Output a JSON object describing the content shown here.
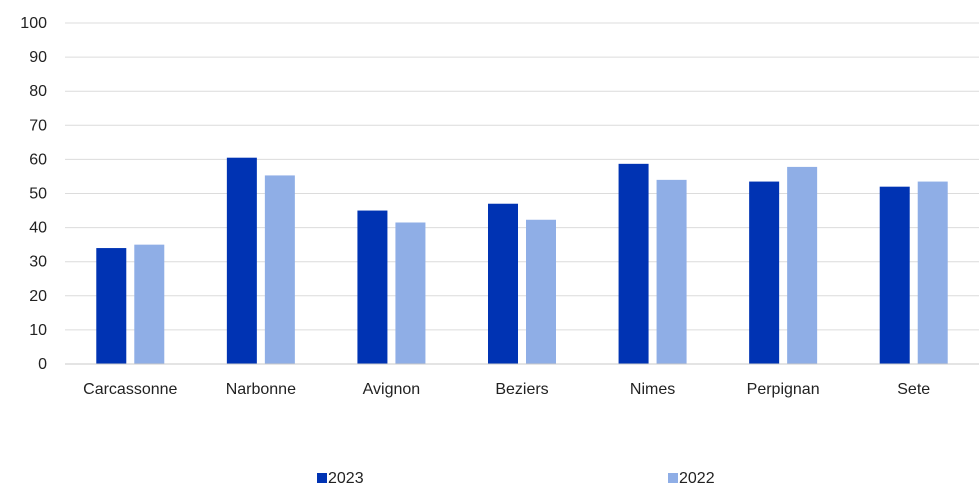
{
  "chart_data": {
    "type": "bar",
    "title": "",
    "xlabel": "",
    "ylabel": "",
    "ylim": [
      0,
      100
    ],
    "yticks": [
      0,
      10,
      20,
      30,
      40,
      50,
      60,
      70,
      80,
      90,
      100
    ],
    "grid": true,
    "legend_position": "bottom",
    "categories": [
      "Carcassonne",
      "Narbonne",
      "Avignon",
      "Beziers",
      "Nimes",
      "Perpignan",
      "Sete"
    ],
    "series": [
      {
        "name": "2023",
        "color": "#0033b3",
        "values": [
          34,
          60.5,
          45,
          47,
          58.7,
          53.5,
          52
        ]
      },
      {
        "name": "2022",
        "color": "#8faee6",
        "values": [
          35,
          55.3,
          41.5,
          42.3,
          54,
          57.8,
          53.5
        ]
      }
    ]
  }
}
